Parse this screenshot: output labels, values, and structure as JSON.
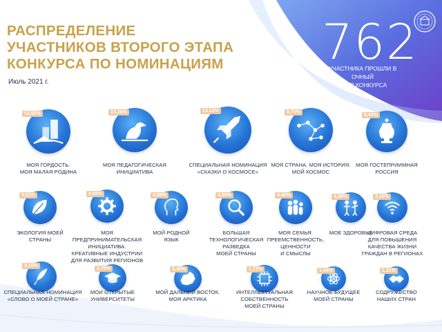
{
  "header": {
    "title_lines": [
      "РАСПРЕДЕЛЕНИЕ",
      "УЧАСТНИКОВ ВТОРОГО ЭТАПА",
      "КОНКУРСА ПО НОМИНАЦИЯМ"
    ],
    "date": "Июль 2021 г."
  },
  "summary": {
    "total": "762",
    "caption_line1": "УЧАСТНИКА ПРОШЛИ В ОЧНЫЙ",
    "caption_line2": "ЭТАП КОНКУРСА"
  },
  "colors": {
    "title": "#c8a24a",
    "badge": "#f0c9a4",
    "circle": "#2574d6",
    "wave": "#5a7ae0"
  },
  "nominations": [
    {
      "percent": "13,52%",
      "lines": [
        "МОЯ ГОРДОСТЬ.",
        "МОЯ МАЛАЯ РОДИНА"
      ],
      "icon": "city-icon"
    },
    {
      "percent": "13,26%",
      "lines": [
        "МОЯ ПЕДАГОГИЧЕСКАЯ",
        "ИНИЦИАТИВА"
      ],
      "icon": "pelican-icon"
    },
    {
      "percent": "13,12%",
      "lines": [
        "СПЕЦИАЛЬНАЯ НОМИНАЦИЯ",
        "«СКАЗКИ О КОСМОСЕ»"
      ],
      "icon": "rocket-icon"
    },
    {
      "percent": "9,71%",
      "lines": [
        "МОЯ СТРАНА. МОЯ ИСТОРИЯ.",
        "МОЙ КОСМОС"
      ],
      "icon": "constellation-icon"
    },
    {
      "percent": "6,43%",
      "lines": [
        "МОЯ ГОСТЕПРИИМНАЯ",
        "РОССИЯ"
      ],
      "icon": "samovar-icon"
    },
    {
      "percent": "5,51%",
      "lines": [
        "ЭКОЛОГИЯ МОЕЙ",
        "СТРАНЫ"
      ],
      "icon": "leaf-icon"
    },
    {
      "percent": "4,59%",
      "lines": [
        "МОЯ ПРЕДПРИНИМАТЕЛЬСКАЯ",
        "ИНИЦИАТИВА.",
        "КРЕАТИВНЫЕ ИНДУСТРИИ",
        "ДЛЯ РАЗВИТИЯ РЕГИОНОВ"
      ],
      "icon": "gear-icon"
    },
    {
      "percent": "4,59%",
      "lines": [
        "МОЙ РОДНОЙ",
        "ЯЗЫК"
      ],
      "icon": "profile-icon"
    },
    {
      "percent": "4,59%",
      "lines": [
        "БОЛЬШАЯ",
        "ТЕХНОЛОГИЧЕСКАЯ",
        "РАЗВЕДКА",
        "МОЕЙ СТРАНЫ"
      ],
      "icon": "magnifier-icon"
    },
    {
      "percent": "4,46%",
      "lines": [
        "МОЯ СЕМЬЯ:",
        "ПРЕЕМСТВЕННОСТЬ,",
        "ЦЕННОСТИ",
        "И СМЫСЛЫ"
      ],
      "icon": "family-icon"
    },
    {
      "percent": "4,20%",
      "lines": [
        "МОЕ ЗДОРОВЬЕ"
      ],
      "icon": "health-icon"
    },
    {
      "percent": "3,15%",
      "lines": [
        "ЦИФРОВАЯ СРЕДА",
        "ДЛЯ ПОВЫШЕНИЯ",
        "КАЧЕСТВА ЖИЗНИ",
        "ГРАЖДАН В РЕГИОНАХ"
      ],
      "icon": "wifi-icon"
    },
    {
      "percent": "3,15%",
      "lines": [
        "СПЕЦИАЛЬНАЯ НОМИНАЦИЯ",
        "«СЛОВО О МОЕЙ СТРАНЕ»"
      ],
      "icon": "quill-icon"
    },
    {
      "percent": "2,76%",
      "lines": [
        "МОИ ОТКРЫТЫЕ",
        "УНИВЕРСИТЕТЫ"
      ],
      "icon": "graduation-cap-icon"
    },
    {
      "percent": "2,49%",
      "lines": [
        "МОЙ ДАЛЬНИЙ ВОСТОК.",
        "МОЯ АРКТИКА"
      ],
      "icon": "map-region-icon"
    },
    {
      "percent": "1,71%",
      "lines": [
        "ИНТЕЛЛЕКТУАЛЬНАЯ",
        "СОБСТВЕННОСТЬ",
        "МОЕЙ СТРАНЫ"
      ],
      "icon": "chip-icon"
    },
    {
      "percent": "1,44%",
      "lines": [
        "НАУЧНОЕ БУДУЩЕЕ",
        "МОЕЙ СТРАНЫ"
      ],
      "icon": "atom-icon"
    },
    {
      "percent": "1,31%",
      "lines": [
        "СОДРУЖЕСТВО",
        "НАШИХ СТРАН"
      ],
      "icon": "handshake-icon"
    }
  ]
}
